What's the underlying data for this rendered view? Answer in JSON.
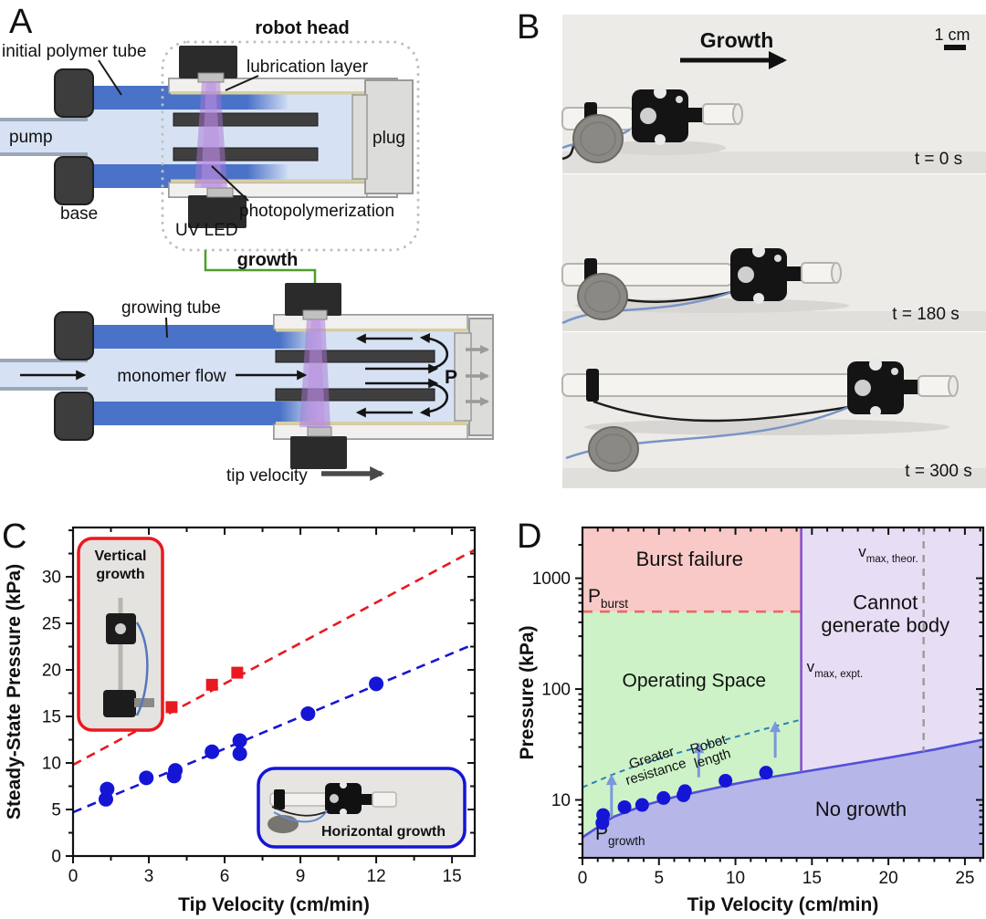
{
  "panel_labels": {
    "a": "A",
    "b": "B",
    "c": "C",
    "d": "D"
  },
  "diagram": {
    "robot_head": "robot head",
    "initial_polymer_tube": "initial polymer tube",
    "lubrication_layer": "lubrication layer",
    "pump": "pump",
    "plug": "plug",
    "base": "base",
    "photopolymerization": "photopolymerization",
    "uv_led": "UV LED",
    "growth": "growth",
    "growing_tube": "growing tube",
    "monomer_flow": "monomer flow",
    "pressure_symbol": "P",
    "tip_velocity": "tip velocity",
    "colors": {
      "tube_blue": "#4a72c8",
      "monomer_blue": "#d6e2f4",
      "uv_purple": "#a674d2",
      "growth_green": "#4f9d2f",
      "uv_label_purple": "#8a35bb",
      "gray_label": "#b3b3b3"
    }
  },
  "photos": {
    "growth_label": "Growth",
    "scale_label": "1 cm",
    "frames": [
      {
        "time": "t = 0 s"
      },
      {
        "time": "t = 180 s"
      },
      {
        "time": "t = 300 s"
      }
    ]
  },
  "chart_data": [
    {
      "id": "panel_c",
      "type": "scatter",
      "xlabel": "Tip Velocity (cm/min)",
      "ylabel": "Steady-State Pressure (kPa)",
      "xlim": [
        0,
        15.9
      ],
      "ylim": [
        0,
        35.3
      ],
      "xticks": [
        0,
        3,
        6,
        9,
        12,
        15
      ],
      "yticks": [
        0,
        5,
        10,
        15,
        20,
        25,
        30
      ],
      "x_minor_step": 1.5,
      "y_minor_step": 2.5,
      "series": [
        {
          "name": "Vertical growth",
          "marker": "square",
          "color": "#e8191f",
          "points": [
            [
              2.8,
              14.0
            ],
            [
              3.9,
              16.0
            ],
            [
              5.5,
              18.4
            ],
            [
              6.5,
              19.7
            ]
          ],
          "trend": {
            "from": [
              0,
              9.8
            ],
            "to": [
              15.9,
              32.9
            ]
          }
        },
        {
          "name": "Horizontal growth",
          "marker": "circle",
          "color": "#1515d6",
          "points": [
            [
              1.3,
              6.1
            ],
            [
              1.35,
              7.2
            ],
            [
              2.9,
              8.4
            ],
            [
              4.0,
              8.6
            ],
            [
              4.05,
              9.2
            ],
            [
              5.5,
              11.2
            ],
            [
              6.6,
              11.0
            ],
            [
              6.6,
              12.4
            ],
            [
              9.3,
              15.3
            ],
            [
              12.0,
              18.5
            ]
          ],
          "trend": {
            "from": [
              0,
              4.7
            ],
            "to": [
              15.9,
              22.8
            ]
          }
        }
      ],
      "insets": [
        {
          "label_line1": "Vertical",
          "label_line2": "growth",
          "color": "#e8191f"
        },
        {
          "label": "Horizontal growth",
          "color": "#1515d6"
        }
      ]
    },
    {
      "id": "panel_d",
      "type": "scatter-regions",
      "yscale": "log",
      "xlabel": "Tip Velocity (cm/min)",
      "ylabel": "Pressure (kPa)",
      "xlim": [
        0,
        26.2
      ],
      "ylim": [
        3,
        2870
      ],
      "xticks": [
        0,
        5,
        10,
        15,
        20,
        25
      ],
      "yticks": [
        10,
        100,
        1000
      ],
      "x_minor_step": 1,
      "regions": [
        {
          "name": "burst",
          "label": "Burst failure",
          "color": "#f8c9c6",
          "label_color": "#e8191f",
          "label_xy": [
            7,
            1300
          ],
          "label_size": 22
        },
        {
          "name": "operating",
          "label": "Operating Space",
          "color": "#cdf2c7",
          "label_color": "#1e8c1e",
          "label_xy": [
            7.3,
            105
          ],
          "label_size": 21
        },
        {
          "name": "cannot",
          "lines": [
            "Cannot",
            "generate body"
          ],
          "color": "#e7def5",
          "label_color": "#7a1fd0",
          "label_xy": [
            19.8,
            420
          ],
          "label_size": 22
        },
        {
          "name": "no_growth",
          "label": "No growth",
          "color": "#b7b6e8",
          "label_color": "#2020cf",
          "label_xy": [
            18.2,
            7.2
          ],
          "label_size": 22
        }
      ],
      "boundaries": {
        "p_burst": {
          "value": 500,
          "label_main": "P",
          "label_sub": "burst",
          "color": "#e86a66",
          "label_color": "#e8191f"
        },
        "v_max_expt": {
          "value": 14.3,
          "label_main": "v",
          "label_sub": "max, expt.",
          "color": "#8a4fd0",
          "label_color": "#8a35cc"
        },
        "v_max_theor": {
          "value": 22.3,
          "label_main": "v",
          "label_sub": "max, theor.",
          "color": "#9a9a9a",
          "label_color": "#9a9a9a"
        },
        "p_growth": {
          "label_main": "P",
          "label_sub": "growth",
          "color": "#5050d8",
          "label_color": "#2323cf",
          "curve": [
            [
              0,
              4.6
            ],
            [
              2,
              7.0
            ],
            [
              4,
              8.9
            ],
            [
              6,
              10.6
            ],
            [
              8,
              12.2
            ],
            [
              10,
              14.0
            ],
            [
              12,
              15.8
            ],
            [
              14.5,
              18.0
            ],
            [
              17,
              20.5
            ],
            [
              20,
              24.0
            ],
            [
              23,
              28.5
            ],
            [
              26.2,
              35.0
            ]
          ]
        },
        "resistance": {
          "color": "#2e7fb5",
          "curve": [
            [
              0,
              13
            ],
            [
              2,
              17
            ],
            [
              4,
              21.5
            ],
            [
              6,
              26
            ],
            [
              8,
              31
            ],
            [
              10,
              37
            ],
            [
              12,
              44
            ],
            [
              14.3,
              53
            ]
          ]
        }
      },
      "annotations": {
        "greater_resistance": {
          "lines": [
            "Greater",
            "resistance"
          ],
          "xy": [
            4.6,
            22
          ],
          "angle": -17
        },
        "robot_length": {
          "lines": [
            "Robot",
            "length"
          ],
          "xy": [
            8.3,
            29
          ],
          "angle": -17
        },
        "arrows": [
          [
            1.9,
            7,
            16
          ],
          [
            7.6,
            16,
            31
          ],
          [
            12.6,
            24,
            48
          ]
        ],
        "arrow_color": "#7b97de"
      },
      "points": {
        "color": "#1515d6",
        "data": [
          [
            1.3,
            6.2
          ],
          [
            1.35,
            7.3
          ],
          [
            2.75,
            8.6
          ],
          [
            3.9,
            9.0
          ],
          [
            5.3,
            10.4
          ],
          [
            6.6,
            11.0
          ],
          [
            6.7,
            12.0
          ],
          [
            9.35,
            14.9
          ],
          [
            12.0,
            17.6
          ]
        ]
      }
    }
  ]
}
